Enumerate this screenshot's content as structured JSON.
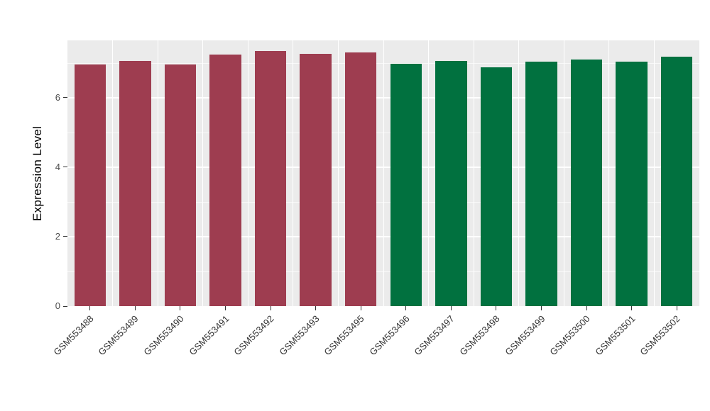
{
  "chart_data": {
    "type": "bar",
    "title": "",
    "xlabel": "",
    "ylabel": "Expression Level",
    "ylim": [
      0,
      7.65
    ],
    "y_ticks": [
      0,
      2,
      4,
      6
    ],
    "y_minor": [
      1,
      3,
      5,
      7
    ],
    "grid": "on",
    "legend_position": "none",
    "panel_background": "#EBEBEB",
    "grid_color": "#FFFFFF",
    "categories": [
      "GSM553488",
      "GSM553489",
      "GSM553490",
      "GSM553491",
      "GSM553492",
      "GSM553493",
      "GSM553495",
      "GSM553496",
      "GSM553497",
      "GSM553498",
      "GSM553499",
      "GSM553500",
      "GSM553501",
      "GSM553502"
    ],
    "values": [
      6.95,
      7.05,
      6.95,
      7.25,
      7.35,
      7.26,
      7.3,
      6.98,
      7.06,
      6.88,
      7.03,
      7.1,
      7.03,
      7.18
    ],
    "groups": [
      "group1",
      "group1",
      "group1",
      "group1",
      "group1",
      "group1",
      "group1",
      "group2",
      "group2",
      "group2",
      "group2",
      "group2",
      "group2",
      "group2"
    ],
    "group_colors": {
      "group1": "#9E3D50",
      "group2": "#01713F"
    }
  }
}
